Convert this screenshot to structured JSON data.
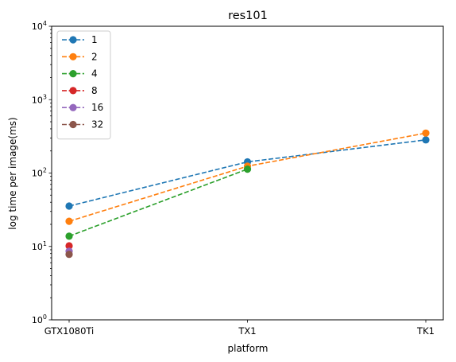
{
  "chart_data": {
    "type": "line",
    "title": "res101",
    "xlabel": "platform",
    "ylabel": "log time per image(ms)",
    "yscale": "log",
    "ylim": [
      1,
      10000
    ],
    "ytick_labels": [
      {
        "base": "10",
        "exp": "0"
      },
      {
        "base": "10",
        "exp": "1"
      },
      {
        "base": "10",
        "exp": "2"
      },
      {
        "base": "10",
        "exp": "3"
      },
      {
        "base": "10",
        "exp": "4"
      }
    ],
    "ytick_values": [
      1,
      10,
      100,
      1000,
      10000
    ],
    "categories": [
      "GTX1080Ti",
      "TX1",
      "TK1"
    ],
    "grid": false,
    "legend_position": "upper-left",
    "series": [
      {
        "name": "1",
        "color": "#1f77b4",
        "values": [
          35.5,
          142,
          283
        ]
      },
      {
        "name": "2",
        "color": "#ff7f0e",
        "values": [
          22,
          124,
          350
        ]
      },
      {
        "name": "4",
        "color": "#2ca02c",
        "values": [
          13.8,
          113,
          null
        ]
      },
      {
        "name": "8",
        "color": "#d62728",
        "values": [
          10.2,
          null,
          null
        ]
      },
      {
        "name": "16",
        "color": "#9467bd",
        "values": [
          8.6,
          null,
          null
        ]
      },
      {
        "name": "32",
        "color": "#8c564b",
        "values": [
          7.8,
          null,
          null
        ]
      }
    ]
  }
}
